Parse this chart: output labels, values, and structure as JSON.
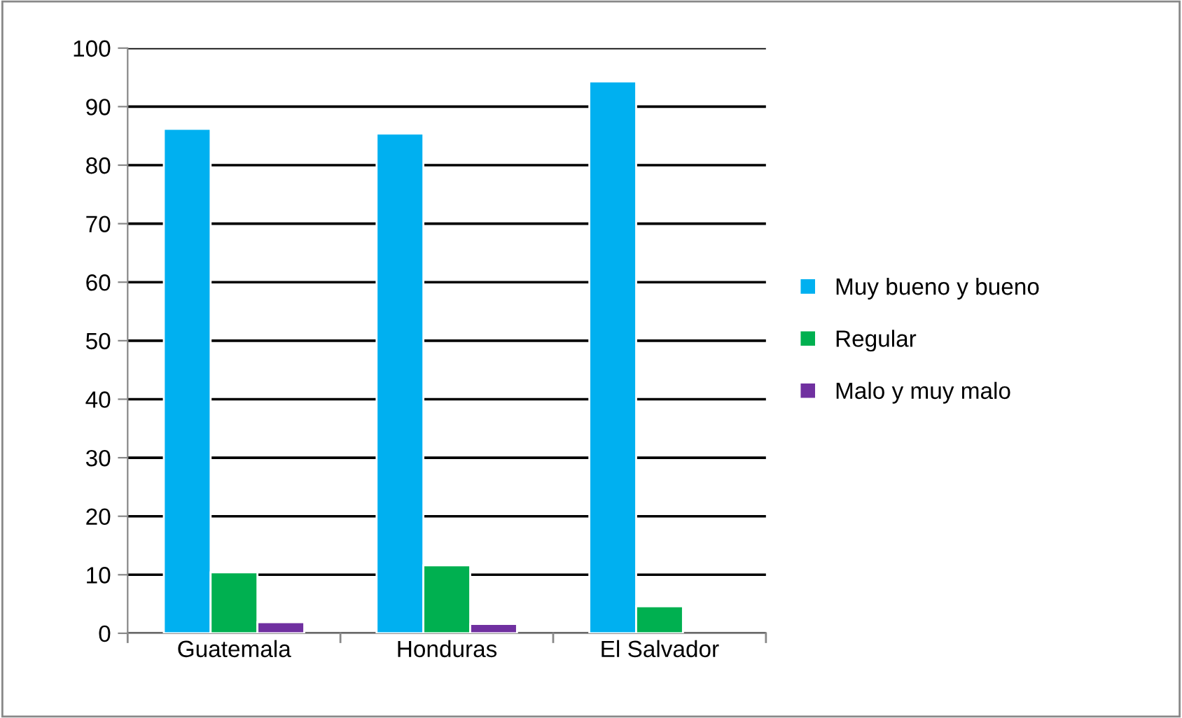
{
  "chart_data": {
    "type": "bar",
    "categories": [
      "Guatemala",
      "Honduras",
      "El Salvador"
    ],
    "series": [
      {
        "name": "Muy bueno y bueno",
        "color": "#00b0f0",
        "values": [
          86.2,
          85.4,
          94.3
        ]
      },
      {
        "name": "Regular",
        "color": "#00b050",
        "values": [
          10.4,
          11.6,
          4.6
        ]
      },
      {
        "name": "Malo y muy malo",
        "color": "#7030a0",
        "values": [
          1.9,
          1.6,
          null
        ]
      }
    ],
    "ylim": [
      0,
      100
    ],
    "yticks": [
      0,
      10,
      20,
      30,
      40,
      50,
      60,
      70,
      80,
      90,
      100
    ],
    "grid": "y",
    "legend": "right"
  }
}
